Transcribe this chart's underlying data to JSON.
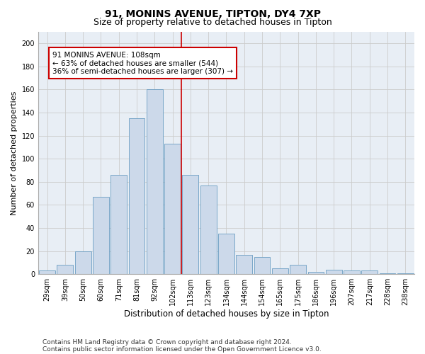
{
  "title1": "91, MONINS AVENUE, TIPTON, DY4 7XP",
  "title2": "Size of property relative to detached houses in Tipton",
  "xlabel": "Distribution of detached houses by size in Tipton",
  "ylabel": "Number of detached properties",
  "bar_labels": [
    "29sqm",
    "39sqm",
    "50sqm",
    "60sqm",
    "71sqm",
    "81sqm",
    "92sqm",
    "102sqm",
    "113sqm",
    "123sqm",
    "134sqm",
    "144sqm",
    "154sqm",
    "165sqm",
    "175sqm",
    "186sqm",
    "196sqm",
    "207sqm",
    "217sqm",
    "228sqm",
    "238sqm"
  ],
  "bar_values": [
    3,
    8,
    20,
    67,
    86,
    135,
    160,
    113,
    86,
    77,
    35,
    17,
    15,
    5,
    8,
    2,
    4,
    3,
    3,
    1,
    1
  ],
  "bar_color": "#ccd9ea",
  "bar_edge_color": "#6b9dc2",
  "vline_bar_index": 7,
  "vline_color": "#cc0000",
  "annotation_text": "91 MONINS AVENUE: 108sqm\n← 63% of detached houses are smaller (544)\n36% of semi-detached houses are larger (307) →",
  "annotation_box_color": "#cc0000",
  "annotation_text_color": "#000000",
  "annotation_box_facecolor": "#ffffff",
  "ylim": [
    0,
    210
  ],
  "yticks": [
    0,
    20,
    40,
    60,
    80,
    100,
    120,
    140,
    160,
    180,
    200
  ],
  "grid_color": "#cccccc",
  "background_color": "#e8eef5",
  "footer1": "Contains HM Land Registry data © Crown copyright and database right 2024.",
  "footer2": "Contains public sector information licensed under the Open Government Licence v3.0.",
  "title1_fontsize": 10,
  "title2_fontsize": 9,
  "xlabel_fontsize": 8.5,
  "ylabel_fontsize": 8,
  "tick_fontsize": 7,
  "annotation_fontsize": 7.5,
  "footer_fontsize": 6.5
}
